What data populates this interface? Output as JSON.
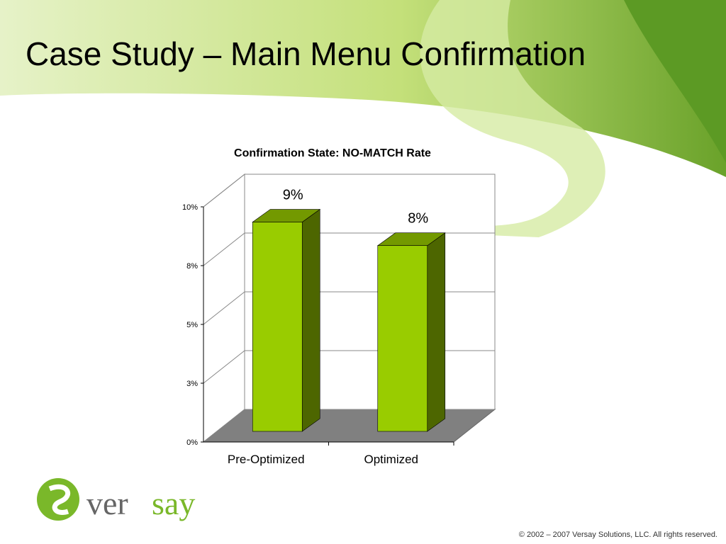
{
  "slide_title": "Case Study – Main Menu Confirmation",
  "chart_data": {
    "type": "bar3d",
    "title": "Confirmation State: NO-MATCH Rate",
    "categories": [
      "Pre-Optimized",
      "Optimized"
    ],
    "values": [
      8.9,
      7.9
    ],
    "value_labels": [
      "9%",
      "8%"
    ],
    "color": "#99cc00",
    "ylim": [
      0,
      10
    ],
    "yticks": [
      {
        "value": 0,
        "label": "0%"
      },
      {
        "value": 2.5,
        "label": "3%"
      },
      {
        "value": 5,
        "label": "5%"
      },
      {
        "value": 7.5,
        "label": "8%"
      },
      {
        "value": 10,
        "label": "10%"
      }
    ],
    "grid": true
  },
  "logo": {
    "part1": "ver",
    "part2": "say"
  },
  "footer": "© 2002 – 2007 Versay Solutions, LLC.  All rights reserved."
}
